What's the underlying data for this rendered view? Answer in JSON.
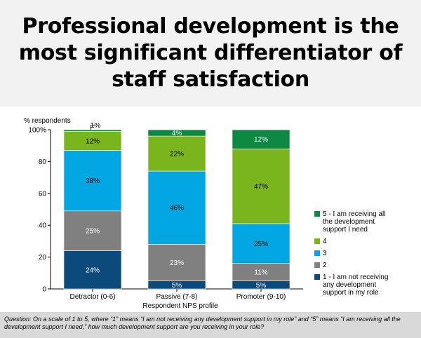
{
  "title": "Professional development is the most significant differentiator of staff satisfaction",
  "question": "Question: On a scale of 1 to 5, where “1” means “I am not receiving any development support in my role” and “5” means “I am receiving all the development support I need,” how much development support are you receiving in your role?",
  "chart_data": {
    "type": "bar",
    "stacked": true,
    "ylabel": "% respondents",
    "xlabel": "Respondent NPS profile",
    "ylim": [
      0,
      100
    ],
    "yticks": [
      "0",
      "20",
      "40",
      "60",
      "80",
      "100%"
    ],
    "categories": [
      "Detractor (0-6)",
      "Passive (7-8)",
      "Promoter (9-10)"
    ],
    "series": [
      {
        "name": "1 - I am not receiving any development support in my role",
        "color": "#0b4a7a",
        "values": [
          24,
          5,
          5
        ],
        "labels": [
          "24%",
          "5%",
          "5%"
        ]
      },
      {
        "name": "2",
        "color": "#808080",
        "values": [
          25,
          23,
          11
        ],
        "labels": [
          "25%",
          "23%",
          "11%"
        ]
      },
      {
        "name": "3",
        "color": "#00a6e2",
        "values": [
          38,
          46,
          25
        ],
        "labels": [
          "38%",
          "46%",
          "25%"
        ]
      },
      {
        "name": "4",
        "color": "#7ab51d",
        "values": [
          12,
          22,
          47
        ],
        "labels": [
          "12%",
          "22%",
          "47%"
        ]
      },
      {
        "name": "5 - I am receiving all the development support I need",
        "color": "#0c8a43",
        "values": [
          1,
          4,
          12
        ],
        "labels": [
          "1%",
          "4%",
          "12%"
        ]
      }
    ],
    "legend": [
      {
        "color": "#0c8a43",
        "lines": [
          "5 - I am receiving all",
          "the development",
          "support I need"
        ]
      },
      {
        "color": "#7ab51d",
        "lines": [
          "4"
        ]
      },
      {
        "color": "#00a6e2",
        "lines": [
          "3"
        ]
      },
      {
        "color": "#808080",
        "lines": [
          "2"
        ]
      },
      {
        "color": "#0b4a7a",
        "lines": [
          "1 - I am not receiving",
          "any development",
          "support in my role"
        ]
      }
    ],
    "legend_position": "right",
    "grid": false
  }
}
